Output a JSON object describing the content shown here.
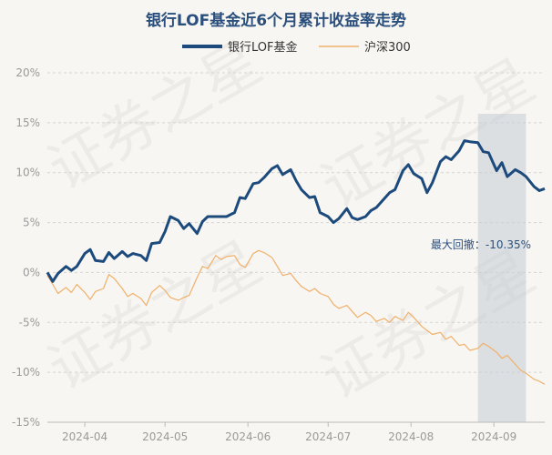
{
  "chart_data": {
    "type": "line",
    "title": "银行LOF基金近6个月累计收益率走势",
    "watermark": "证券之星",
    "x_labels": [
      "2024-04",
      "2024-05",
      "2024-06",
      "2024-07",
      "2024-08",
      "2024-09"
    ],
    "y_ticks": [
      "20%",
      "15%",
      "10%",
      "5%",
      "0%",
      "-5%",
      "-10%",
      "-15%"
    ],
    "ylim": [
      -15,
      20
    ],
    "x_range": [
      "2024-03-18",
      "2024-09-20"
    ],
    "grid": true,
    "legend_position": "top-center",
    "annotation": {
      "label": "最大回撤",
      "value": "-10.35%",
      "text": "最大回撤：-10.35%",
      "shade_x": [
        "2024-08-26",
        "2024-09-13"
      ]
    },
    "series": [
      {
        "name": "银行LOF基金",
        "color": "#1c4a7c",
        "points": [
          [
            "2024-03-18",
            0
          ],
          [
            "2024-03-20",
            -0.9
          ],
          [
            "2024-03-22",
            -0.1
          ],
          [
            "2024-03-25",
            0.6
          ],
          [
            "2024-03-27",
            0.2
          ],
          [
            "2024-03-29",
            0.6
          ],
          [
            "2024-04-01",
            1.9
          ],
          [
            "2024-04-03",
            2.3
          ],
          [
            "2024-04-05",
            1.2
          ],
          [
            "2024-04-08",
            1.1
          ],
          [
            "2024-04-10",
            2.0
          ],
          [
            "2024-04-12",
            1.4
          ],
          [
            "2024-04-15",
            2.1
          ],
          [
            "2024-04-17",
            1.6
          ],
          [
            "2024-04-19",
            1.9
          ],
          [
            "2024-04-22",
            1.7
          ],
          [
            "2024-04-24",
            1.2
          ],
          [
            "2024-04-26",
            2.9
          ],
          [
            "2024-04-29",
            3.0
          ],
          [
            "2024-05-01",
            4.1
          ],
          [
            "2024-05-03",
            5.6
          ],
          [
            "2024-05-06",
            5.2
          ],
          [
            "2024-05-08",
            4.4
          ],
          [
            "2024-05-10",
            4.9
          ],
          [
            "2024-05-13",
            3.9
          ],
          [
            "2024-05-15",
            5.1
          ],
          [
            "2024-05-17",
            5.6
          ],
          [
            "2024-05-20",
            5.6
          ],
          [
            "2024-05-22",
            5.6
          ],
          [
            "2024-05-24",
            5.6
          ],
          [
            "2024-05-27",
            6.0
          ],
          [
            "2024-05-29",
            7.5
          ],
          [
            "2024-05-31",
            7.4
          ],
          [
            "2024-06-03",
            8.9
          ],
          [
            "2024-06-05",
            9.0
          ],
          [
            "2024-06-07",
            9.5
          ],
          [
            "2024-06-10",
            10.4
          ],
          [
            "2024-06-12",
            10.7
          ],
          [
            "2024-06-14",
            9.8
          ],
          [
            "2024-06-17",
            10.3
          ],
          [
            "2024-06-19",
            9.2
          ],
          [
            "2024-06-21",
            8.3
          ],
          [
            "2024-06-24",
            7.5
          ],
          [
            "2024-06-26",
            7.6
          ],
          [
            "2024-06-28",
            6.0
          ],
          [
            "2024-07-01",
            5.6
          ],
          [
            "2024-07-03",
            5.0
          ],
          [
            "2024-07-05",
            5.4
          ],
          [
            "2024-07-08",
            6.4
          ],
          [
            "2024-07-10",
            5.5
          ],
          [
            "2024-07-12",
            5.3
          ],
          [
            "2024-07-15",
            5.6
          ],
          [
            "2024-07-17",
            6.2
          ],
          [
            "2024-07-19",
            6.5
          ],
          [
            "2024-07-22",
            7.4
          ],
          [
            "2024-07-24",
            8.0
          ],
          [
            "2024-07-26",
            8.3
          ],
          [
            "2024-07-29",
            10.2
          ],
          [
            "2024-07-31",
            10.8
          ],
          [
            "2024-08-02",
            9.9
          ],
          [
            "2024-08-05",
            9.4
          ],
          [
            "2024-08-07",
            8.0
          ],
          [
            "2024-08-09",
            9.0
          ],
          [
            "2024-08-12",
            11.1
          ],
          [
            "2024-08-14",
            11.6
          ],
          [
            "2024-08-16",
            11.3
          ],
          [
            "2024-08-19",
            12.2
          ],
          [
            "2024-08-21",
            13.2
          ],
          [
            "2024-08-23",
            13.1
          ],
          [
            "2024-08-26",
            13.0
          ],
          [
            "2024-08-28",
            12.1
          ],
          [
            "2024-08-30",
            12.0
          ],
          [
            "2024-09-02",
            10.2
          ],
          [
            "2024-09-04",
            11.0
          ],
          [
            "2024-09-06",
            9.6
          ],
          [
            "2024-09-09",
            10.3
          ],
          [
            "2024-09-11",
            10.0
          ],
          [
            "2024-09-13",
            9.6
          ],
          [
            "2024-09-16",
            8.6
          ],
          [
            "2024-09-18",
            8.2
          ],
          [
            "2024-09-20",
            8.4
          ]
        ]
      },
      {
        "name": "沪深300",
        "color": "#f0b06a",
        "points": [
          [
            "2024-03-18",
            -0.3
          ],
          [
            "2024-03-20",
            -1.2
          ],
          [
            "2024-03-22",
            -2.1
          ],
          [
            "2024-03-25",
            -1.5
          ],
          [
            "2024-03-27",
            -2.0
          ],
          [
            "2024-03-29",
            -1.2
          ],
          [
            "2024-04-01",
            -2.0
          ],
          [
            "2024-04-03",
            -2.7
          ],
          [
            "2024-04-05",
            -1.9
          ],
          [
            "2024-04-08",
            -1.6
          ],
          [
            "2024-04-10",
            -0.2
          ],
          [
            "2024-04-12",
            -0.6
          ],
          [
            "2024-04-15",
            -1.6
          ],
          [
            "2024-04-17",
            -2.4
          ],
          [
            "2024-04-19",
            -2.1
          ],
          [
            "2024-04-22",
            -2.6
          ],
          [
            "2024-04-24",
            -3.3
          ],
          [
            "2024-04-26",
            -2.0
          ],
          [
            "2024-04-29",
            -1.3
          ],
          [
            "2024-05-01",
            -1.8
          ],
          [
            "2024-05-03",
            -2.5
          ],
          [
            "2024-05-06",
            -2.8
          ],
          [
            "2024-05-08",
            -2.5
          ],
          [
            "2024-05-10",
            -2.3
          ],
          [
            "2024-05-13",
            -0.5
          ],
          [
            "2024-05-15",
            0.6
          ],
          [
            "2024-05-17",
            0.4
          ],
          [
            "2024-05-20",
            1.7
          ],
          [
            "2024-05-22",
            1.3
          ],
          [
            "2024-05-24",
            1.6
          ],
          [
            "2024-05-27",
            1.7
          ],
          [
            "2024-05-29",
            0.8
          ],
          [
            "2024-05-31",
            0.5
          ],
          [
            "2024-06-03",
            1.9
          ],
          [
            "2024-06-05",
            2.2
          ],
          [
            "2024-06-07",
            2.0
          ],
          [
            "2024-06-10",
            1.5
          ],
          [
            "2024-06-12",
            0.6
          ],
          [
            "2024-06-14",
            -0.3
          ],
          [
            "2024-06-17",
            -0.1
          ],
          [
            "2024-06-19",
            -0.8
          ],
          [
            "2024-06-21",
            -1.4
          ],
          [
            "2024-06-24",
            -1.9
          ],
          [
            "2024-06-26",
            -1.6
          ],
          [
            "2024-06-28",
            -2.1
          ],
          [
            "2024-07-01",
            -2.4
          ],
          [
            "2024-07-03",
            -3.2
          ],
          [
            "2024-07-05",
            -3.6
          ],
          [
            "2024-07-08",
            -3.3
          ],
          [
            "2024-07-10",
            -3.9
          ],
          [
            "2024-07-12",
            -4.5
          ],
          [
            "2024-07-15",
            -4.0
          ],
          [
            "2024-07-17",
            -4.3
          ],
          [
            "2024-07-19",
            -4.9
          ],
          [
            "2024-07-22",
            -4.6
          ],
          [
            "2024-07-24",
            -5.0
          ],
          [
            "2024-07-26",
            -4.4
          ],
          [
            "2024-07-29",
            -4.8
          ],
          [
            "2024-07-31",
            -4.0
          ],
          [
            "2024-08-02",
            -4.5
          ],
          [
            "2024-08-05",
            -5.4
          ],
          [
            "2024-08-07",
            -5.8
          ],
          [
            "2024-08-09",
            -6.2
          ],
          [
            "2024-08-12",
            -6.0
          ],
          [
            "2024-08-14",
            -6.7
          ],
          [
            "2024-08-16",
            -6.4
          ],
          [
            "2024-08-19",
            -7.3
          ],
          [
            "2024-08-21",
            -7.2
          ],
          [
            "2024-08-23",
            -7.8
          ],
          [
            "2024-08-26",
            -7.6
          ],
          [
            "2024-08-28",
            -7.1
          ],
          [
            "2024-08-30",
            -7.4
          ],
          [
            "2024-09-02",
            -8.0
          ],
          [
            "2024-09-04",
            -8.6
          ],
          [
            "2024-09-06",
            -8.3
          ],
          [
            "2024-09-09",
            -9.2
          ],
          [
            "2024-09-11",
            -9.8
          ],
          [
            "2024-09-13",
            -10.1
          ],
          [
            "2024-09-16",
            -10.7
          ],
          [
            "2024-09-18",
            -10.9
          ],
          [
            "2024-09-20",
            -11.2
          ]
        ]
      }
    ]
  }
}
